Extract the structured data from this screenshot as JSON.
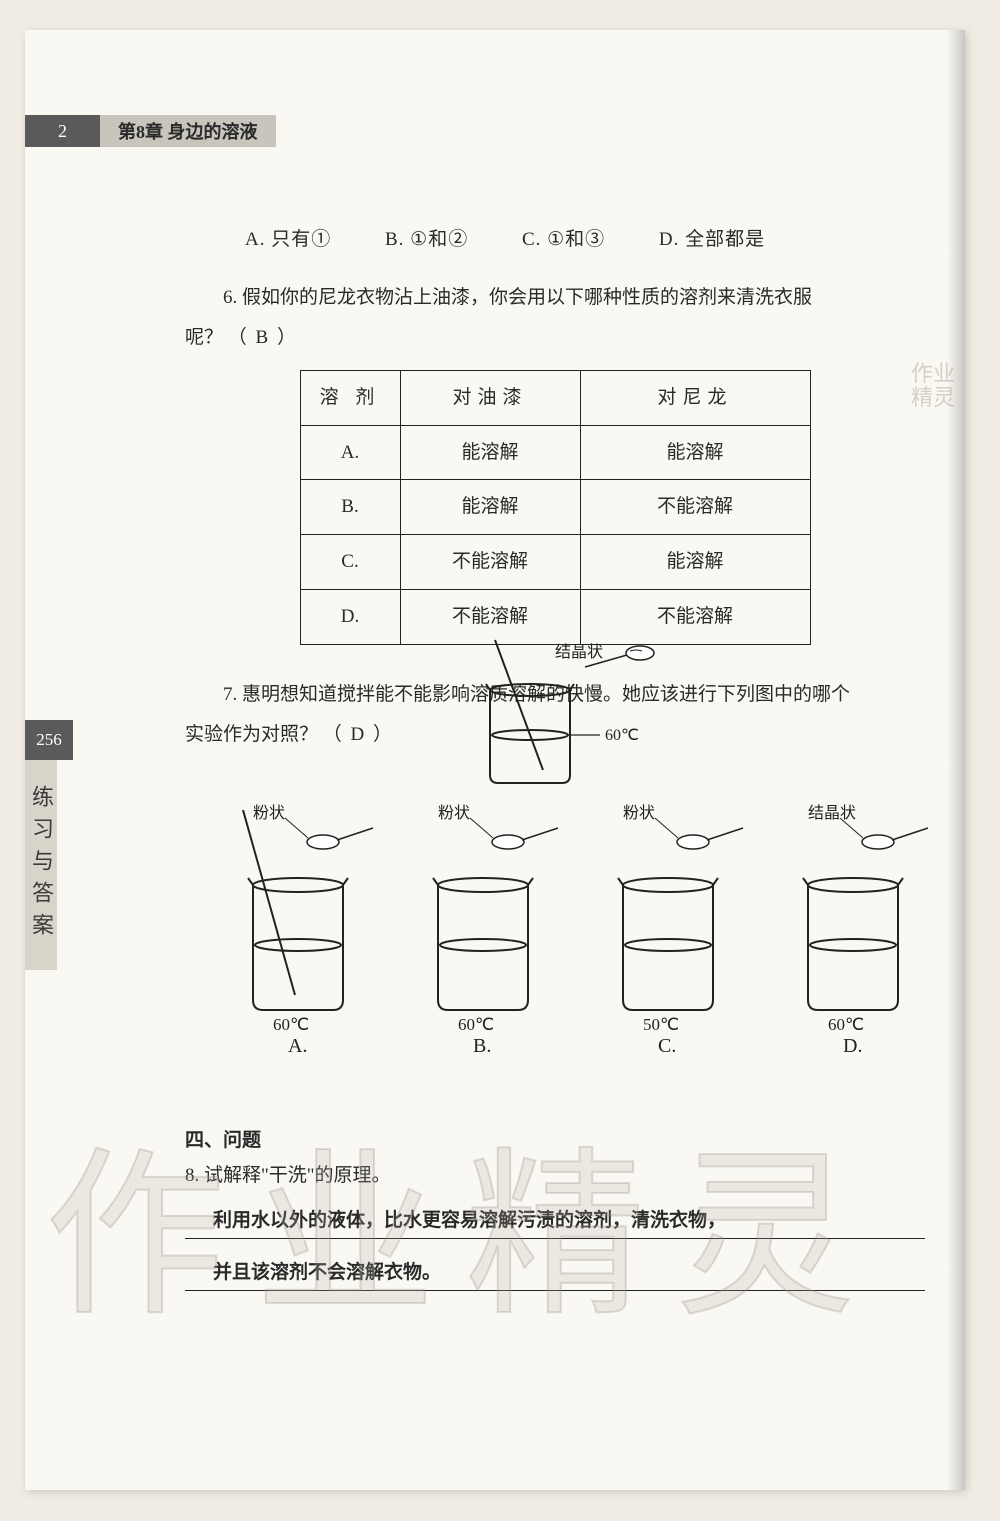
{
  "header": {
    "page_num": "2",
    "chapter": "第8章 身边的溶液"
  },
  "side": {
    "num": "256",
    "label": "练习与答案"
  },
  "q5_options": {
    "a": "A. 只有①",
    "b": "B. ①和②",
    "c": "C. ①和③",
    "d": "D. 全部都是"
  },
  "q6": {
    "text_line1": "6. 假如你的尼龙衣物沾上油漆，你会用以下哪种性质的溶剂来清洗衣服",
    "text_line2": "呢？",
    "answer": "B",
    "table": {
      "headers": [
        "溶 剂",
        "对油漆",
        "对尼龙"
      ],
      "rows": [
        [
          "A.",
          "能溶解",
          "能溶解"
        ],
        [
          "B.",
          "能溶解",
          "不能溶解"
        ],
        [
          "C.",
          "不能溶解",
          "能溶解"
        ],
        [
          "D.",
          "不能溶解",
          "不能溶解"
        ]
      ]
    }
  },
  "watermark_small": {
    "l1": "作业",
    "l2": "精灵"
  },
  "q7": {
    "text_line1": "7. 惠明想知道搅拌能不能影响溶质溶解的快慢。她应该进行下列图中的哪个",
    "text_line2": "实验作为对照？",
    "answer": "D"
  },
  "ref_diagram": {
    "spoon_label": "结晶状",
    "temp": "60℃"
  },
  "diagrams": {
    "items": [
      {
        "spoon": "粉状",
        "temp": "60℃",
        "opt": "A.",
        "stir": true
      },
      {
        "spoon": "粉状",
        "temp": "60℃",
        "opt": "B.",
        "stir": false
      },
      {
        "spoon": "粉状",
        "temp": "50℃",
        "opt": "C.",
        "stir": false
      },
      {
        "spoon": "结晶状",
        "temp": "60℃",
        "opt": "D.",
        "stir": false
      }
    ]
  },
  "section4": {
    "title": "四、问题",
    "q8": "8. 试解释\"干洗\"的原理。",
    "ans1": "利用水以外的液体，比水更容易溶解污渍的溶剂，清洗衣物，",
    "ans2": "并且该溶剂不会溶解衣物。"
  },
  "big_watermark": "作业精灵",
  "colors": {
    "page_bg": "#faf8f3",
    "body_bg": "#f0ece4",
    "dark_box": "#5a5a5a",
    "light_box": "#c8c5bd",
    "side_box": "#d8d4ca",
    "text": "#2a2a2a",
    "border": "#222222"
  }
}
